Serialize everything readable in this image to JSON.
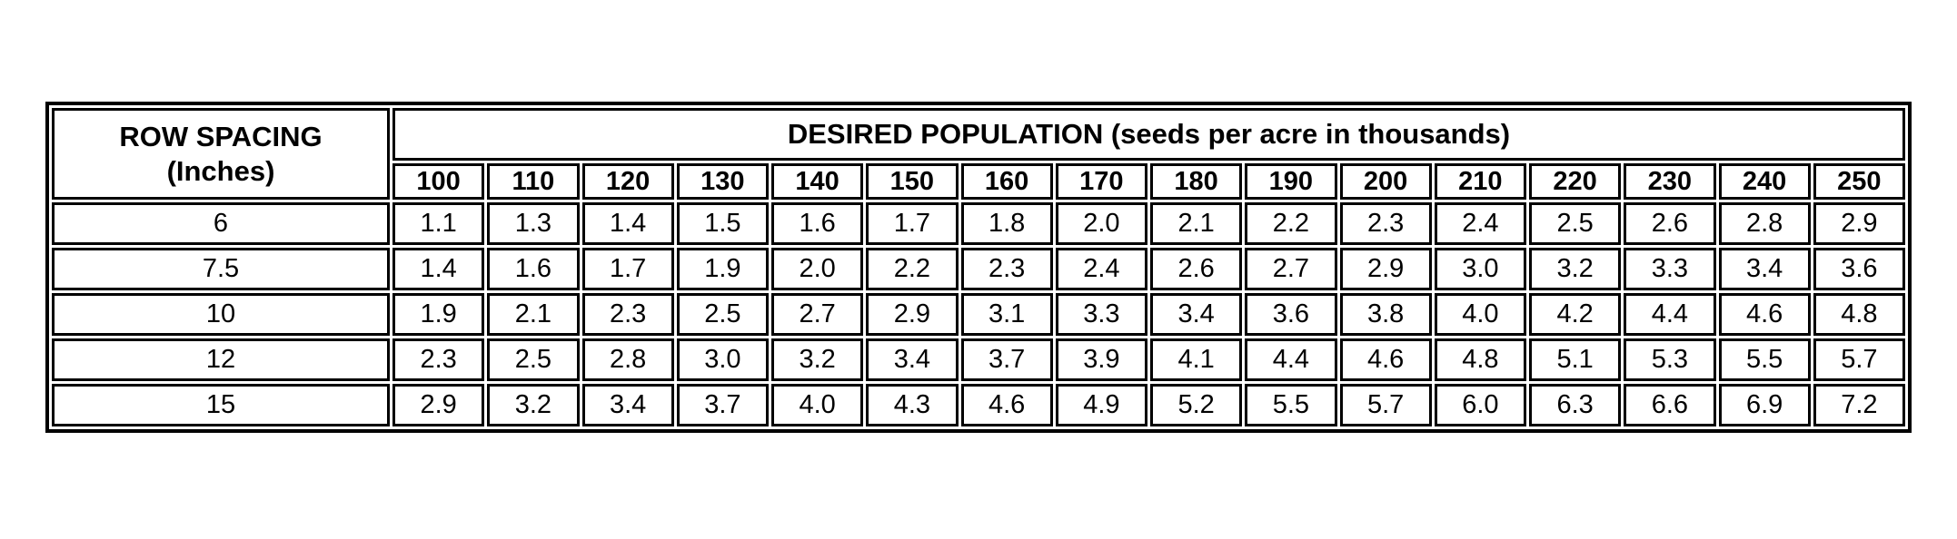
{
  "page": {
    "background_color": "#ffffff",
    "border_color": "#000000"
  },
  "table": {
    "corner_header_line1": "ROW SPACING",
    "corner_header_line2": "(Inches)",
    "population_header": "DESIRED POPULATION (seeds per acre in thousands)",
    "columns": [
      "100",
      "110",
      "120",
      "130",
      "140",
      "150",
      "160",
      "170",
      "180",
      "190",
      "200",
      "210",
      "220",
      "230",
      "240",
      "250"
    ],
    "rows": [
      {
        "row_spacing": "6",
        "values": [
          "1.1",
          "1.3",
          "1.4",
          "1.5",
          "1.6",
          "1.7",
          "1.8",
          "2.0",
          "2.1",
          "2.2",
          "2.3",
          "2.4",
          "2.5",
          "2.6",
          "2.8",
          "2.9"
        ]
      },
      {
        "row_spacing": "7.5",
        "values": [
          "1.4",
          "1.6",
          "1.7",
          "1.9",
          "2.0",
          "2.2",
          "2.3",
          "2.4",
          "2.6",
          "2.7",
          "2.9",
          "3.0",
          "3.2",
          "3.3",
          "3.4",
          "3.6"
        ]
      },
      {
        "row_spacing": "10",
        "values": [
          "1.9",
          "2.1",
          "2.3",
          "2.5",
          "2.7",
          "2.9",
          "3.1",
          "3.3",
          "3.4",
          "3.6",
          "3.8",
          "4.0",
          "4.2",
          "4.4",
          "4.6",
          "4.8"
        ]
      },
      {
        "row_spacing": "12",
        "values": [
          "2.3",
          "2.5",
          "2.8",
          "3.0",
          "3.2",
          "3.4",
          "3.7",
          "3.9",
          "4.1",
          "4.4",
          "4.6",
          "4.8",
          "5.1",
          "5.3",
          "5.5",
          "5.7"
        ]
      },
      {
        "row_spacing": "15",
        "values": [
          "2.9",
          "3.2",
          "3.4",
          "3.7",
          "4.0",
          "4.3",
          "4.6",
          "4.9",
          "5.2",
          "5.5",
          "5.7",
          "6.0",
          "6.3",
          "6.6",
          "6.9",
          "7.2"
        ]
      }
    ]
  },
  "chart_data": {
    "type": "table",
    "title": "DESIRED POPULATION (seeds per acre in thousands)",
    "row_axis_label": "ROW SPACING (Inches)",
    "columns": [
      100,
      110,
      120,
      130,
      140,
      150,
      160,
      170,
      180,
      190,
      200,
      210,
      220,
      230,
      240,
      250
    ],
    "rows": [
      {
        "row_spacing": 6,
        "values": [
          1.1,
          1.3,
          1.4,
          1.5,
          1.6,
          1.7,
          1.8,
          2.0,
          2.1,
          2.2,
          2.3,
          2.4,
          2.5,
          2.6,
          2.8,
          2.9
        ]
      },
      {
        "row_spacing": 7.5,
        "values": [
          1.4,
          1.6,
          1.7,
          1.9,
          2.0,
          2.2,
          2.3,
          2.4,
          2.6,
          2.7,
          2.9,
          3.0,
          3.2,
          3.3,
          3.4,
          3.6
        ]
      },
      {
        "row_spacing": 10,
        "values": [
          1.9,
          2.1,
          2.3,
          2.5,
          2.7,
          2.9,
          3.1,
          3.3,
          3.4,
          3.6,
          3.8,
          4.0,
          4.2,
          4.4,
          4.6,
          4.8
        ]
      },
      {
        "row_spacing": 12,
        "values": [
          2.3,
          2.5,
          2.8,
          3.0,
          3.2,
          3.4,
          3.7,
          3.9,
          4.1,
          4.4,
          4.6,
          4.8,
          5.1,
          5.3,
          5.5,
          5.7
        ]
      },
      {
        "row_spacing": 15,
        "values": [
          2.9,
          3.2,
          3.4,
          3.7,
          4.0,
          4.3,
          4.6,
          4.9,
          5.2,
          5.5,
          5.7,
          6.0,
          6.3,
          6.6,
          6.9,
          7.2
        ]
      }
    ]
  }
}
